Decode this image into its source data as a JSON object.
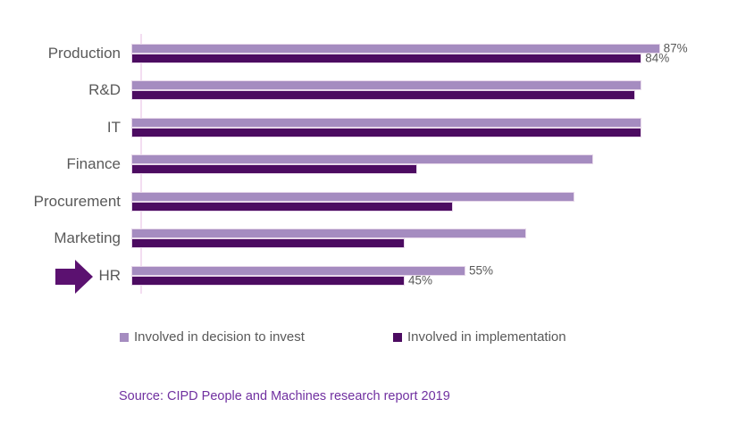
{
  "figure": {
    "background": "#FFFFFF",
    "source_text": "Source: CIPD People and Machines research report 2019",
    "source_color": "#7030A0"
  },
  "chart_data": {
    "type": "bar",
    "orientation": "horizontal",
    "title": "",
    "categories": [
      "Production",
      "R&D",
      "IT",
      "Finance",
      "Procurement",
      "Marketing",
      "HR"
    ],
    "series": [
      {
        "name": "Involved in decision to invest",
        "color": "#A58CC0",
        "values": [
          87,
          84,
          84,
          76,
          73,
          65,
          55
        ],
        "data_labels": [
          "87%",
          null,
          null,
          null,
          null,
          null,
          "55%"
        ]
      },
      {
        "name": "Involved in implementation",
        "color": "#4C0B61",
        "values": [
          84,
          83,
          84,
          47,
          53,
          45,
          45
        ],
        "data_labels": [
          "84%",
          null,
          null,
          null,
          null,
          null,
          "45%"
        ]
      }
    ],
    "value_axis": {
      "min": 0,
      "max": 100,
      "unit": "%",
      "visible": false
    },
    "category_axis": {
      "line_color": "#F3DDF1",
      "label_color": "#595959"
    },
    "data_label_color": "#595959",
    "grid": false,
    "legend": {
      "position": "bottom",
      "entries": [
        "Involved in decision to invest",
        "Involved in implementation"
      ]
    },
    "annotation": {
      "type": "block-arrow-right",
      "target_category": "HR",
      "color": "#5B1170"
    }
  }
}
